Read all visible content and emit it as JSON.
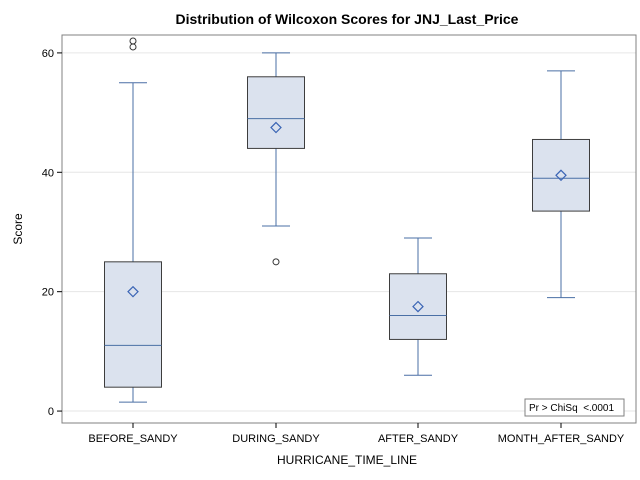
{
  "chart_data": {
    "type": "box",
    "title": "Distribution of Wilcoxon Scores for JNJ_Last_Price",
    "xlabel": "HURRICANE_TIME_LINE",
    "ylabel": "Score",
    "ylim": [
      -2,
      63
    ],
    "yticks": [
      0,
      20,
      40,
      60
    ],
    "grid": true,
    "colors": {
      "box_fill": "#dbe2ee",
      "box_stroke": "#3d3d3d",
      "whisker": "#4a6fa5",
      "median": "#4a6fa5",
      "mean_marker": "#3b65b5",
      "grid": "#e6e6e6",
      "frame": "#808080"
    },
    "categories": [
      "BEFORE_SANDY",
      "DURING_SANDY",
      "AFTER_SANDY",
      "MONTH_AFTER_SANDY"
    ],
    "boxes": [
      {
        "category": "BEFORE_SANDY",
        "whisker_low": 1.5,
        "q1": 4,
        "median": 11,
        "q3": 25,
        "whisker_high": 55,
        "mean": 20,
        "outliers": [
          61,
          62
        ]
      },
      {
        "category": "DURING_SANDY",
        "whisker_low": 31,
        "q1": 44,
        "median": 49,
        "q3": 56,
        "whisker_high": 60,
        "mean": 47.5,
        "outliers": [
          25
        ]
      },
      {
        "category": "AFTER_SANDY",
        "whisker_low": 6,
        "q1": 12,
        "median": 16,
        "q3": 23,
        "whisker_high": 29,
        "mean": 17.5,
        "outliers": []
      },
      {
        "category": "MONTH_AFTER_SANDY",
        "whisker_low": 19,
        "q1": 33.5,
        "median": 39,
        "q3": 45.5,
        "whisker_high": 57,
        "mean": 39.5,
        "outliers": []
      }
    ],
    "annotation": "Pr > ChiSq  <.0001"
  }
}
